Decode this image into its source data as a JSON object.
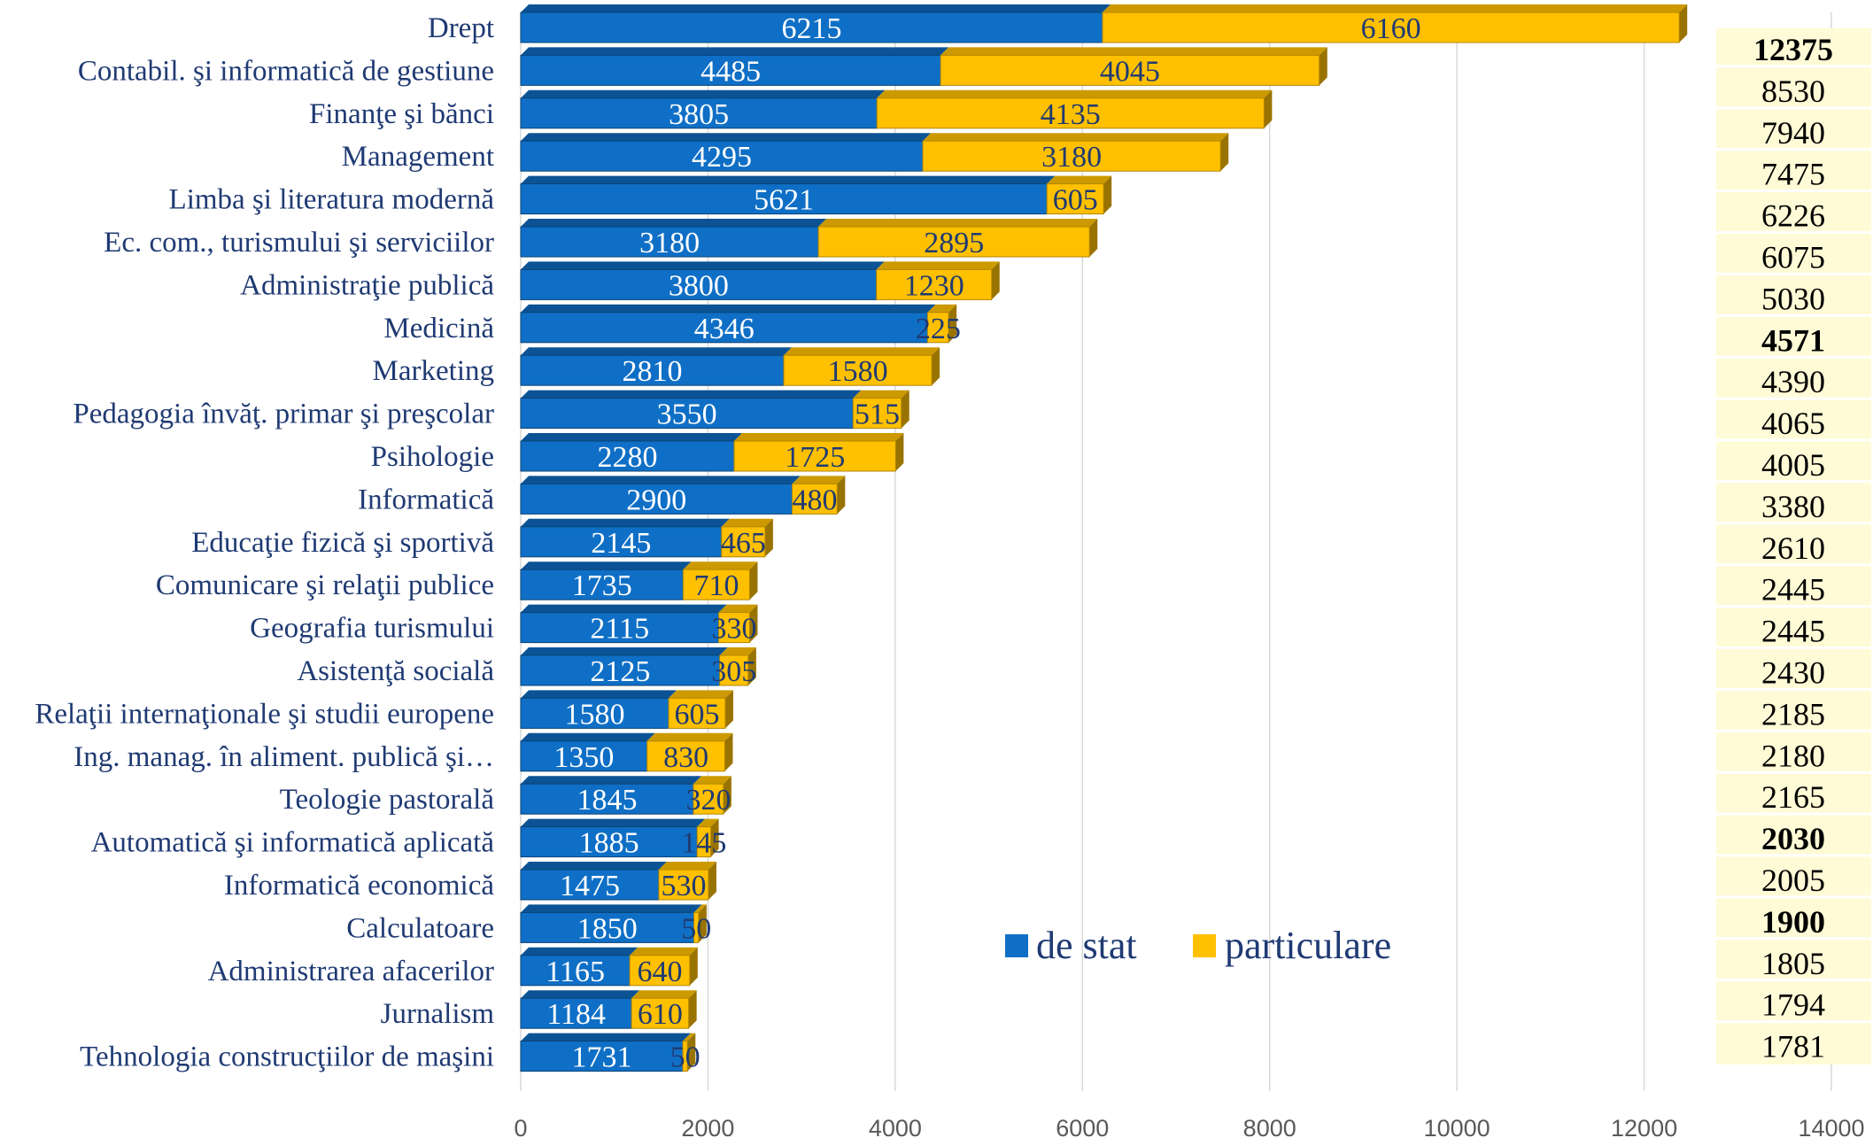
{
  "chart_data": {
    "type": "bar",
    "orientation": "horizontal",
    "stacked": true,
    "categories": [
      "Drept",
      "Contabil. şi informatică de gestiune",
      "Finanţe şi bănci",
      "Management",
      "Limba şi literatura modernă",
      "Ec. com., turismului şi serviciilor",
      "Administraţie publică",
      "Medicină",
      "Marketing",
      "Pedagogia învăţ. primar şi preşcolar",
      "Psihologie",
      "Informatică",
      "Educaţie fizică şi sportivă",
      "Comunicare şi relaţii publice",
      "Geografia turismului",
      "Asistenţă socială",
      "Relaţii internaţionale şi studii europene",
      "Ing. manag. în aliment. publică şi…",
      "Teologie pastorală",
      "Automatică şi informatică aplicată",
      "Informatică economică",
      "Calculatoare",
      "Administrarea afacerilor",
      "Jurnalism",
      "Tehnologia construcţiilor de maşini"
    ],
    "series": [
      {
        "name": "de stat",
        "color": "#0f6fc6",
        "values": [
          6215,
          4485,
          3805,
          4295,
          5621,
          3180,
          3800,
          4346,
          2810,
          3550,
          2280,
          2900,
          2145,
          1735,
          2115,
          2125,
          1580,
          1350,
          1845,
          1885,
          1475,
          1850,
          1165,
          1184,
          1731
        ]
      },
      {
        "name": "particulare",
        "color": "#ffc000",
        "values": [
          6160,
          4045,
          4135,
          3180,
          605,
          2895,
          1230,
          225,
          1580,
          515,
          1725,
          480,
          465,
          710,
          330,
          305,
          605,
          830,
          320,
          145,
          530,
          50,
          640,
          610,
          50
        ]
      }
    ],
    "totals": [
      "12375",
      "8530",
      "7940",
      "7475",
      "6226",
      "6075",
      "5030",
      "4571",
      "4390",
      "4065",
      "4005",
      "3380",
      "2610",
      "2445",
      "2445",
      "2430",
      "2185",
      "2180",
      "2165",
      "2030",
      "2005",
      "1900",
      "1805",
      "1794",
      "1781"
    ],
    "totals_highlight": {
      "12375": "#2e75b6",
      "4571": "#c00000",
      "2030": "#c00000",
      "1900": "#c00000"
    },
    "totals_background": "#fffbd6",
    "xlim": [
      0,
      14000
    ],
    "xticks": [
      0,
      2000,
      4000,
      6000,
      8000,
      10000,
      12000,
      14000
    ],
    "grid": true,
    "legend": "inside-lower-right",
    "title": "",
    "xlabel": "",
    "ylabel": ""
  }
}
